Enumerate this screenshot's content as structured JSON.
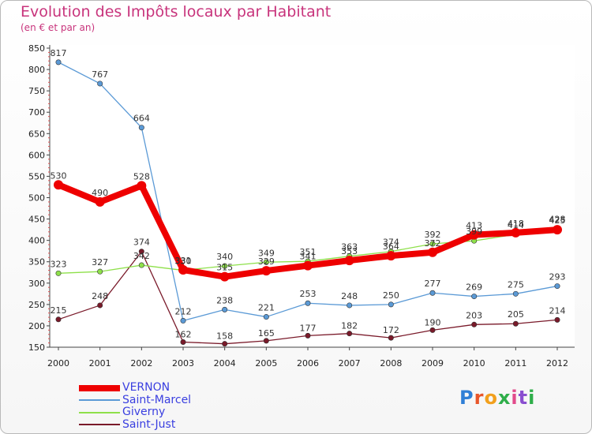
{
  "title": "Evolution des Impôts locaux par Habitant",
  "subtitle": "(en € et par an)",
  "brand": "Proxiti",
  "chart_data": {
    "type": "line",
    "title": "Evolution des Impôts locaux par Habitant",
    "subtitle": "(en € et par an)",
    "xlabel": "",
    "ylabel": "",
    "x": [
      "2000",
      "2001",
      "2002",
      "2003",
      "2004",
      "2005",
      "2006",
      "2007",
      "2008",
      "2009",
      "2010",
      "2011",
      "2012"
    ],
    "ylim": [
      150,
      850
    ],
    "yticks": [
      150,
      200,
      250,
      300,
      350,
      400,
      450,
      500,
      550,
      600,
      650,
      700,
      750,
      800,
      850
    ],
    "legend_position": "bottom-left",
    "series": [
      {
        "name": "VERNON",
        "color": "#ee0000",
        "values": [
          530,
          490,
          528,
          331,
          315,
          329,
          341,
          353,
          364,
          372,
          413,
          418,
          425
        ],
        "labels": [
          "530",
          "490",
          "528",
          "331",
          "315",
          "329",
          "341",
          "353",
          "364",
          "372",
          "413",
          "418",
          "425"
        ]
      },
      {
        "name": "Saint-Marcel",
        "color": "#5b9ad6",
        "values": [
          817,
          767,
          664,
          212,
          238,
          221,
          253,
          248,
          250,
          277,
          269,
          275,
          293
        ],
        "labels": [
          "817",
          "767",
          "664",
          "212",
          "238",
          "221",
          "253",
          "248",
          "250",
          "277",
          "269",
          "275",
          "293"
        ]
      },
      {
        "name": "Giverny",
        "color": "#8ee04a",
        "values": [
          323,
          327,
          342,
          330,
          340,
          349,
          351,
          363,
          374,
          392,
          399,
          414,
          428
        ],
        "labels": [
          "323",
          "327",
          "342",
          "330",
          "340",
          "349",
          "351",
          "363",
          "374",
          "392",
          "399",
          "414",
          "428"
        ]
      },
      {
        "name": "Saint-Just",
        "color": "#7a1a2a",
        "values": [
          215,
          248,
          374,
          162,
          158,
          165,
          177,
          182,
          172,
          190,
          203,
          205,
          214
        ],
        "labels": [
          "215",
          "248",
          "374",
          "162",
          "158",
          "165",
          "177",
          "182",
          "172",
          "190",
          "203",
          "205",
          "214"
        ]
      }
    ]
  }
}
